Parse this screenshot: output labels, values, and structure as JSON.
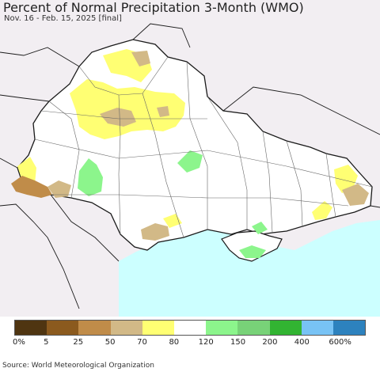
{
  "header": {
    "title": "Percent of Normal Precipitation 3-Month (WMO)",
    "subtitle": "Nov. 16 - Feb. 15, 2025 [final]"
  },
  "legend": {
    "colors": [
      "#4f3511",
      "#8b5a1e",
      "#c08c49",
      "#d2b987",
      "#ffff73",
      "#ffffff",
      "#8cf58c",
      "#78d278",
      "#32b432",
      "#78c3f5",
      "#2d82be"
    ],
    "ticks": [
      "0%",
      "5",
      "25",
      "50",
      "70",
      "80",
      "120",
      "150",
      "200",
      "400",
      "600%"
    ]
  },
  "footer": {
    "source": "Source: World Meteorological Organization"
  },
  "map_colors": {
    "background": "#f2eef2",
    "land": "#ffffff",
    "sea": "#ccffff",
    "border": "#1a1a1a",
    "oblast_line": "#666666"
  }
}
